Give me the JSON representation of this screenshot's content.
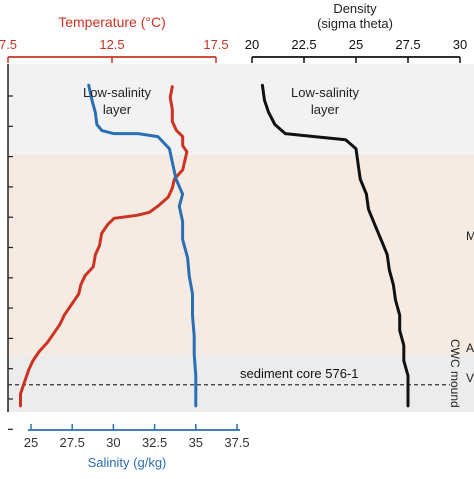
{
  "chart_data": {
    "type": "line",
    "title": "",
    "colors": {
      "temperature": "#cc3322",
      "salinity": "#2a6fb5",
      "density": "#111111",
      "band_upper": "#f2f2f2",
      "band_middle": "#f6ebe3",
      "band_lower": "#ececec",
      "core_line": "#333333"
    },
    "axes": {
      "temperature": {
        "label": "Temperature (°C)",
        "ticks": [
          "7.5",
          "12.5",
          "17.5"
        ],
        "range": [
          7.5,
          17.5
        ],
        "position": "top"
      },
      "density": {
        "label": "Density",
        "sublabel": "(sigma theta)",
        "ticks": [
          "20",
          "22.5",
          "25",
          "27.5",
          "30"
        ],
        "range": [
          20,
          30
        ],
        "position": "top"
      },
      "salinity": {
        "label": "Salinity (g/kg)",
        "ticks": [
          "25",
          "27.5",
          "30",
          "32.5",
          "35",
          "37.5"
        ],
        "range": [
          25,
          37.5
        ],
        "position": "bottom"
      },
      "depth": {
        "label": "",
        "range": [
          0,
          11.5
        ],
        "tick_count": 12,
        "note": "relative depth, increasing downward; tick values not printed"
      }
    },
    "annotations": {
      "low_salinity_left": "Low-salinity\nlayer",
      "low_salinity_right": "Low-salinity\nlayer",
      "core": "sediment core 576-1",
      "right_label_m": "M",
      "right_label_a": "A",
      "right_label_v": "V",
      "right_vertical": "CWC mound"
    },
    "bands": [
      {
        "name": "upper",
        "from": 0,
        "to": 3.0
      },
      {
        "name": "middle",
        "from": 3.0,
        "to": 9.6
      },
      {
        "name": "lower",
        "from": 9.6,
        "to": 11.5
      }
    ],
    "core_depth": 10.6,
    "series": [
      {
        "name": "Temperature",
        "axis": "temperature",
        "points": [
          [
            15.4,
            0.75
          ],
          [
            15.3,
            1.1
          ],
          [
            15.4,
            1.5
          ],
          [
            15.4,
            1.9
          ],
          [
            15.6,
            2.2
          ],
          [
            15.9,
            2.4
          ],
          [
            15.9,
            2.7
          ],
          [
            16.1,
            2.9
          ],
          [
            16.0,
            3.2
          ],
          [
            15.9,
            3.5
          ],
          [
            15.5,
            3.8
          ],
          [
            15.4,
            4.1
          ],
          [
            15.2,
            4.4
          ],
          [
            14.7,
            4.7
          ],
          [
            14.3,
            4.9
          ],
          [
            13.7,
            5.0
          ],
          [
            12.6,
            5.1
          ],
          [
            12.3,
            5.3
          ],
          [
            12.0,
            5.6
          ],
          [
            11.9,
            6.0
          ],
          [
            11.7,
            6.3
          ],
          [
            11.6,
            6.7
          ],
          [
            11.2,
            7.0
          ],
          [
            11.0,
            7.3
          ],
          [
            10.9,
            7.6
          ],
          [
            10.6,
            7.9
          ],
          [
            10.2,
            8.3
          ],
          [
            10.0,
            8.6
          ],
          [
            9.7,
            8.9
          ],
          [
            9.4,
            9.2
          ],
          [
            9.0,
            9.5
          ],
          [
            8.7,
            9.8
          ],
          [
            8.5,
            10.1
          ],
          [
            8.3,
            10.5
          ],
          [
            8.1,
            10.9
          ],
          [
            8.1,
            11.3
          ]
        ]
      },
      {
        "name": "Salinity",
        "axis": "salinity",
        "points": [
          [
            28.5,
            0.7
          ],
          [
            28.7,
            1.2
          ],
          [
            28.9,
            1.6
          ],
          [
            29.0,
            2.0
          ],
          [
            29.3,
            2.2
          ],
          [
            30.0,
            2.3
          ],
          [
            31.5,
            2.3
          ],
          [
            32.7,
            2.4
          ],
          [
            33.4,
            2.8
          ],
          [
            33.6,
            3.3
          ],
          [
            33.8,
            3.8
          ],
          [
            34.2,
            4.3
          ],
          [
            34.0,
            4.7
          ],
          [
            34.2,
            5.2
          ],
          [
            34.2,
            5.8
          ],
          [
            34.5,
            6.4
          ],
          [
            34.6,
            7.0
          ],
          [
            34.8,
            7.6
          ],
          [
            34.8,
            8.3
          ],
          [
            34.9,
            9.0
          ],
          [
            34.9,
            9.6
          ],
          [
            35.0,
            10.3
          ],
          [
            35.0,
            11.0
          ],
          [
            35.0,
            11.3
          ]
        ]
      },
      {
        "name": "Density",
        "axis": "density",
        "points": [
          [
            20.5,
            0.7
          ],
          [
            20.6,
            1.2
          ],
          [
            20.8,
            1.6
          ],
          [
            21.1,
            2.0
          ],
          [
            21.6,
            2.3
          ],
          [
            23.0,
            2.4
          ],
          [
            24.5,
            2.5
          ],
          [
            25.0,
            2.8
          ],
          [
            25.1,
            3.3
          ],
          [
            25.2,
            3.8
          ],
          [
            25.5,
            4.3
          ],
          [
            25.6,
            4.8
          ],
          [
            25.9,
            5.3
          ],
          [
            26.2,
            5.8
          ],
          [
            26.5,
            6.3
          ],
          [
            26.6,
            6.8
          ],
          [
            26.8,
            7.3
          ],
          [
            26.9,
            7.8
          ],
          [
            27.1,
            8.3
          ],
          [
            27.1,
            8.8
          ],
          [
            27.3,
            9.3
          ],
          [
            27.3,
            9.8
          ],
          [
            27.5,
            10.3
          ],
          [
            27.5,
            10.8
          ],
          [
            27.5,
            11.3
          ]
        ]
      }
    ]
  }
}
